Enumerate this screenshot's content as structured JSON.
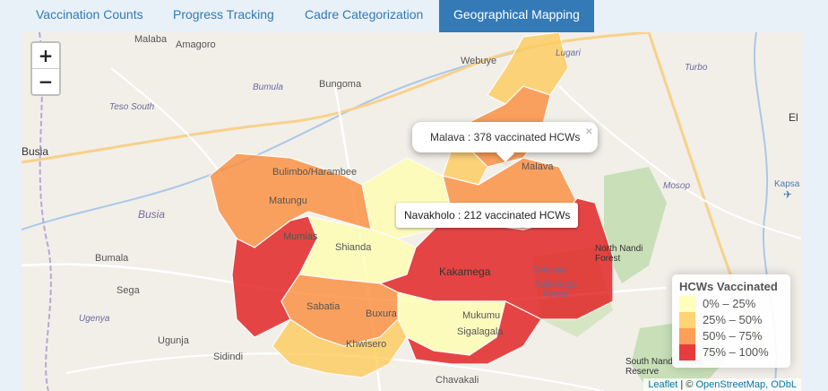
{
  "tabs": [
    {
      "label": "Vaccination Counts"
    },
    {
      "label": "Progress Tracking"
    },
    {
      "label": "Cadre Categorization"
    },
    {
      "label": "Geographical Mapping",
      "active": true
    }
  ],
  "zoom": {
    "in": "+",
    "out": "−"
  },
  "popup": {
    "text": "Malava : 378 vaccinated HCWs",
    "close": "×"
  },
  "tooltip": {
    "text": "Navakholo : 212 vaccinated HCWs"
  },
  "legend": {
    "title": "HCWs Vaccinated",
    "items": [
      {
        "label": "0% – 25%",
        "color": "#ffffb2"
      },
      {
        "label": "25% – 50%",
        "color": "#fecc5c"
      },
      {
        "label": "50% – 75%",
        "color": "#fd8d3c"
      },
      {
        "label": "75% – 100%",
        "color": "#e31a1c"
      }
    ]
  },
  "attribution": {
    "leaflet": "Leaflet",
    "sep": " | © ",
    "osm": "OpenStreetMap",
    "odbl": ", ODbL"
  },
  "place_labels": {
    "malaba": "Malaba",
    "amagoro": "Amagoro",
    "webuye": "Webuye",
    "lugari": "Lugari",
    "turbo": "Turbo",
    "bumula_top": "Bumula",
    "bungoma": "Bungoma",
    "teso_south": "Teso South",
    "busia_town": "Busia",
    "bulimbo": "Bulimbo/Harambee",
    "matungu": "Matungu",
    "busia_region": "Busia",
    "mumias": "Mumias",
    "shianda": "Shianda",
    "kakamega": "Kakamega",
    "shinyalu": "Shinyalu",
    "kakamega_forest": "Kakamega Forest",
    "north_nandi": "North Nandi Forest",
    "mosop": "Mosop",
    "kapsabet": "Kapsa",
    "el": "El",
    "malava_map": "Malava",
    "bumala": "Bumala",
    "sega": "Sega",
    "sabatia": "Sabatia",
    "butere": "Buxura",
    "mukumu": "Mukumu",
    "sigalagala": "Sigalagala",
    "ugenya": "Ugenya",
    "ugunja": "Ugunja",
    "khwisero": "Khwisero",
    "sidindi": "Sidindi",
    "chavakali": "Chavakali",
    "south_nandi": "South Nandi Forest Reserve"
  }
}
